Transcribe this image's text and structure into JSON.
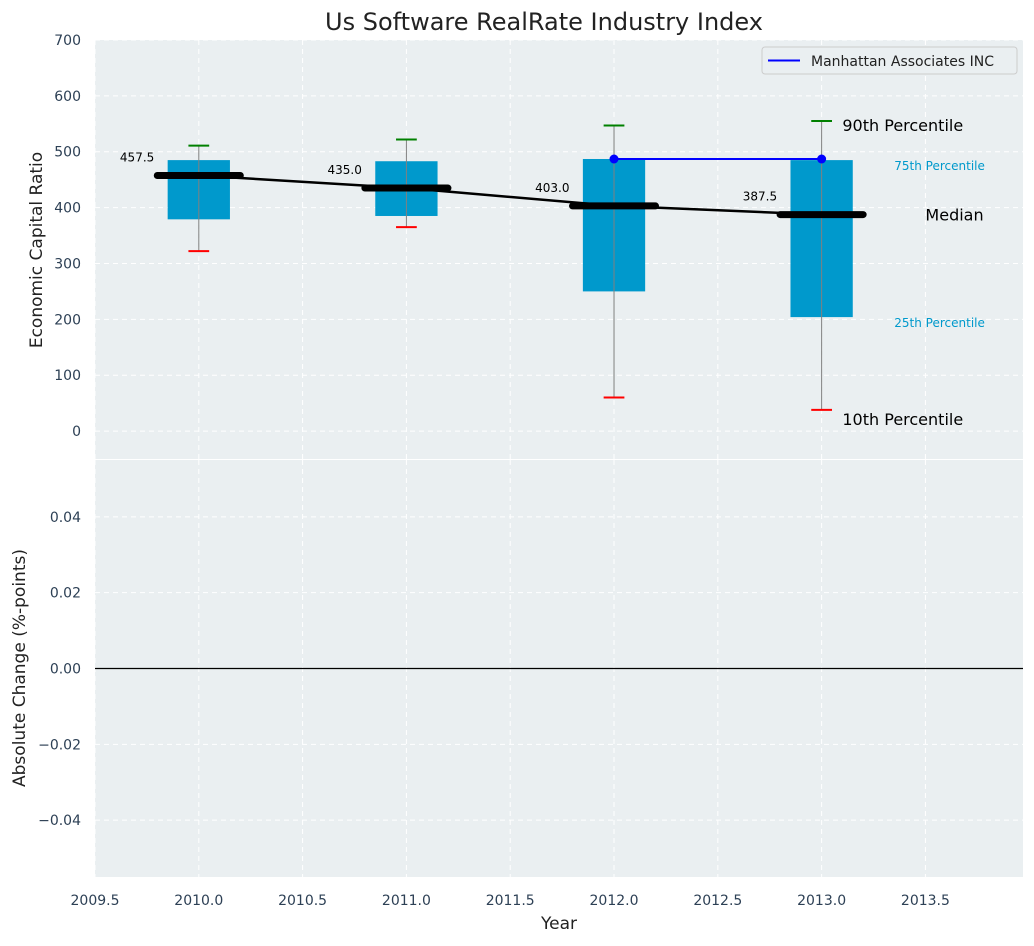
{
  "chart_data": [
    {
      "type": "box",
      "title": "Us Software RealRate Industry Index",
      "ylabel": "Economic Capital Ratio",
      "xlim": [
        2009.5,
        2013.97
      ],
      "ylim": [
        -50,
        700
      ],
      "yticks": [
        0,
        100,
        200,
        300,
        400,
        500,
        600,
        700
      ],
      "grid": true,
      "legend": {
        "placement": "top-right",
        "entries": [
          {
            "label": "Manhattan Associates INC",
            "color": "#0000ff"
          }
        ]
      },
      "categories": [
        2010,
        2011,
        2012,
        2013
      ],
      "boxes": [
        {
          "x": 2010,
          "p10": 322,
          "p25": 379,
          "median": 457.5,
          "p75": 485,
          "p90": 511
        },
        {
          "x": 2011,
          "p10": 365,
          "p25": 385,
          "median": 435.0,
          "p75": 483,
          "p90": 522
        },
        {
          "x": 2012,
          "p10": 60,
          "p25": 250,
          "median": 403.0,
          "p75": 487,
          "p90": 547
        },
        {
          "x": 2013,
          "p10": 38,
          "p25": 204,
          "median": 387.5,
          "p75": 485,
          "p90": 555
        }
      ],
      "median_labels": [
        "457.5",
        "435.0",
        "403.0",
        "387.5"
      ],
      "series": [
        {
          "name": "Manhattan Associates INC",
          "x": [
            2012,
            2013
          ],
          "values": [
            487,
            487
          ],
          "color": "#0000ff"
        }
      ],
      "annotations": {
        "p90": "90th Percentile",
        "p75": "75th Percentile",
        "median": "Median",
        "p25": "25th Percentile",
        "p10": "10th Percentile"
      },
      "colors": {
        "box": "#0099cc",
        "p90_cap": "#008000",
        "p10_cap": "#ff0000",
        "median": "#000000",
        "background": "#eaeff1",
        "axis_text": "#2d4055"
      }
    },
    {
      "type": "line",
      "xlabel": "Year",
      "ylabel": "Absolute Change (%-points)",
      "xlim": [
        2009.5,
        2013.97
      ],
      "ylim": [
        -0.055,
        0.055
      ],
      "xticks": [
        2009.5,
        2010.0,
        2010.5,
        2011.0,
        2011.5,
        2012.0,
        2012.5,
        2013.0,
        2013.5
      ],
      "xtick_labels": [
        "2009.5",
        "2010.0",
        "2010.5",
        "2011.0",
        "2011.5",
        "2012.0",
        "2012.5",
        "2013.0",
        "2013.5"
      ],
      "yticks": [
        -0.04,
        -0.02,
        0.0,
        0.02,
        0.04
      ],
      "ytick_labels": [
        "−0.04",
        "−0.02",
        "0.00",
        "0.02",
        "0.04"
      ],
      "zero_line": 0,
      "grid": true,
      "series": []
    }
  ]
}
